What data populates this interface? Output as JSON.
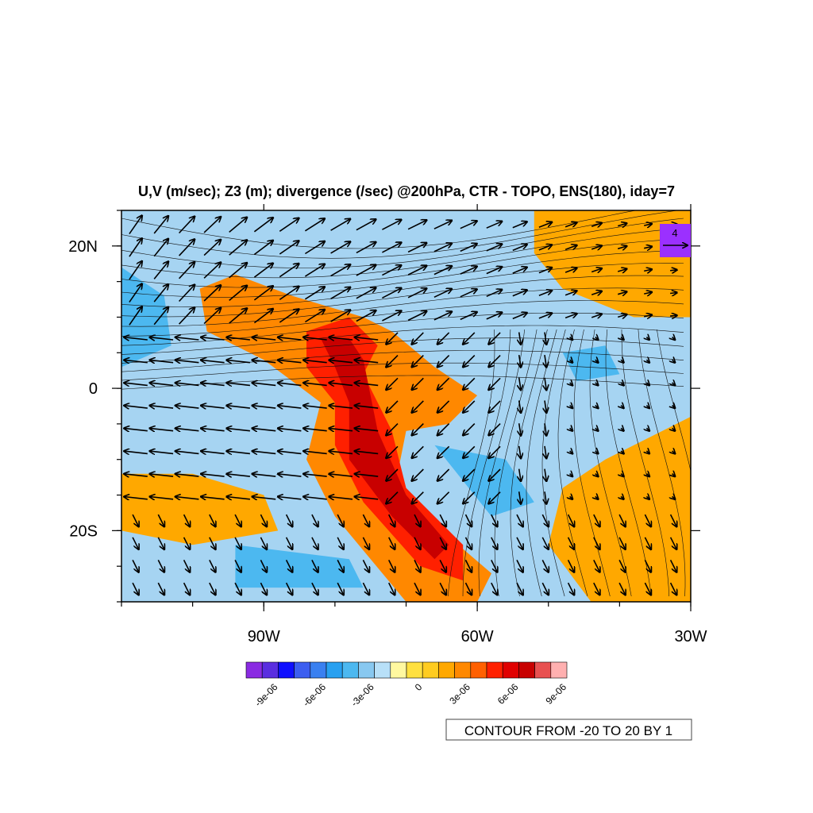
{
  "title": "U,V (m/sec); Z3 (m); divergence (/sec) @200hPa, CTR - TOPO, ENS(180), iday=7",
  "map": {
    "lon_range": [
      -110,
      -30
    ],
    "lat_range": [
      -30,
      25
    ],
    "x_ticks": [
      {
        "lon": -90,
        "label": "90W"
      },
      {
        "lon": -60,
        "label": "60W"
      },
      {
        "lon": -30,
        "label": "30W"
      }
    ],
    "y_ticks": [
      {
        "lat": 20,
        "label": "20N"
      },
      {
        "lat": 0,
        "label": "0"
      },
      {
        "lat": -20,
        "label": "20S"
      }
    ]
  },
  "reference_vector": {
    "label": "4",
    "color": "#9b30ff"
  },
  "colorbar": {
    "colors": [
      "#8a2be2",
      "#5a2ee0",
      "#1010ff",
      "#3c5ef0",
      "#3a80f0",
      "#28a0f0",
      "#4cb8f0",
      "#88c8f0",
      "#b8e0f8",
      "#fff8a0",
      "#ffe040",
      "#ffcc20",
      "#ffa800",
      "#ff8800",
      "#ff6000",
      "#ff2000",
      "#e00000",
      "#c80000",
      "#e85050",
      "#ffb0b0"
    ],
    "labels": [
      {
        "index": 2,
        "text": "-9e-06"
      },
      {
        "index": 5,
        "text": "-6e-06"
      },
      {
        "index": 8,
        "text": "-3e-06"
      },
      {
        "index": 11,
        "text": "0"
      },
      {
        "index": 14,
        "text": "3e-06"
      },
      {
        "index": 17,
        "text": "6e-06"
      },
      {
        "index": 20,
        "text": "9e-06"
      }
    ]
  },
  "contour_info": "CONTOUR FROM -20 TO 20 BY 1",
  "divergence_features": [
    {
      "kind": "positive",
      "level": 0.35,
      "points": [
        [
          -99,
          14
        ],
        [
          -94,
          16
        ],
        [
          -86,
          13
        ],
        [
          -76,
          10
        ],
        [
          -72,
          8
        ],
        [
          -66,
          3
        ],
        [
          -60,
          -1
        ],
        [
          -64,
          -5
        ],
        [
          -70,
          -6
        ],
        [
          -72,
          -16
        ],
        [
          -65,
          -20
        ],
        [
          -58,
          -26
        ],
        [
          -60,
          -30
        ],
        [
          -70,
          -30
        ],
        [
          -80,
          -18
        ],
        [
          -84,
          -10
        ],
        [
          -82,
          -2
        ],
        [
          -90,
          4
        ],
        [
          -98,
          8
        ]
      ]
    },
    {
      "kind": "positive",
      "level": 0.6,
      "points": [
        [
          -84,
          8
        ],
        [
          -78,
          10
        ],
        [
          -74,
          6
        ],
        [
          -76,
          2
        ],
        [
          -72,
          -6
        ],
        [
          -70,
          -14
        ],
        [
          -62,
          -22
        ],
        [
          -62,
          -27
        ],
        [
          -68,
          -25
        ],
        [
          -76,
          -16
        ],
        [
          -80,
          -8
        ],
        [
          -80,
          -2
        ],
        [
          -84,
          3
        ]
      ]
    },
    {
      "kind": "positive",
      "level": 0.85,
      "points": [
        [
          -82,
          7
        ],
        [
          -78,
          7
        ],
        [
          -76,
          4
        ],
        [
          -74,
          -6
        ],
        [
          -70,
          -15
        ],
        [
          -64,
          -22
        ],
        [
          -66,
          -24
        ],
        [
          -72,
          -18
        ],
        [
          -78,
          -10
        ],
        [
          -78,
          -2
        ],
        [
          -80,
          3
        ]
      ]
    },
    {
      "kind": "positive",
      "level": 0.3,
      "points": [
        [
          -110,
          -12
        ],
        [
          -100,
          -12
        ],
        [
          -90,
          -15
        ],
        [
          -88,
          -20
        ],
        [
          -100,
          -22
        ],
        [
          -110,
          -20
        ]
      ]
    },
    {
      "kind": "positive",
      "level": 0.3,
      "points": [
        [
          -52,
          25
        ],
        [
          -30,
          25
        ],
        [
          -30,
          10
        ],
        [
          -38,
          10
        ],
        [
          -48,
          14
        ],
        [
          -52,
          19
        ]
      ]
    },
    {
      "kind": "positive",
      "level": 0.3,
      "points": [
        [
          -42,
          -10
        ],
        [
          -30,
          -4
        ],
        [
          -30,
          -30
        ],
        [
          -44,
          -30
        ],
        [
          -50,
          -22
        ],
        [
          -48,
          -14
        ]
      ]
    },
    {
      "kind": "negative",
      "level": 0.3,
      "points": [
        [
          -110,
          17
        ],
        [
          -104,
          13
        ],
        [
          -103,
          6
        ],
        [
          -110,
          3
        ]
      ]
    },
    {
      "kind": "negative",
      "level": 0.25,
      "points": [
        [
          -48,
          5
        ],
        [
          -42,
          6
        ],
        [
          -40,
          2
        ],
        [
          -46,
          1
        ]
      ]
    },
    {
      "kind": "negative",
      "level": 0.25,
      "points": [
        [
          -66,
          -8
        ],
        [
          -56,
          -10
        ],
        [
          -52,
          -16
        ],
        [
          -58,
          -18
        ]
      ]
    },
    {
      "kind": "negative",
      "level": 0.2,
      "points": [
        [
          -94,
          -22
        ],
        [
          -78,
          -24
        ],
        [
          -76,
          -28
        ],
        [
          -94,
          -28
        ]
      ]
    }
  ]
}
